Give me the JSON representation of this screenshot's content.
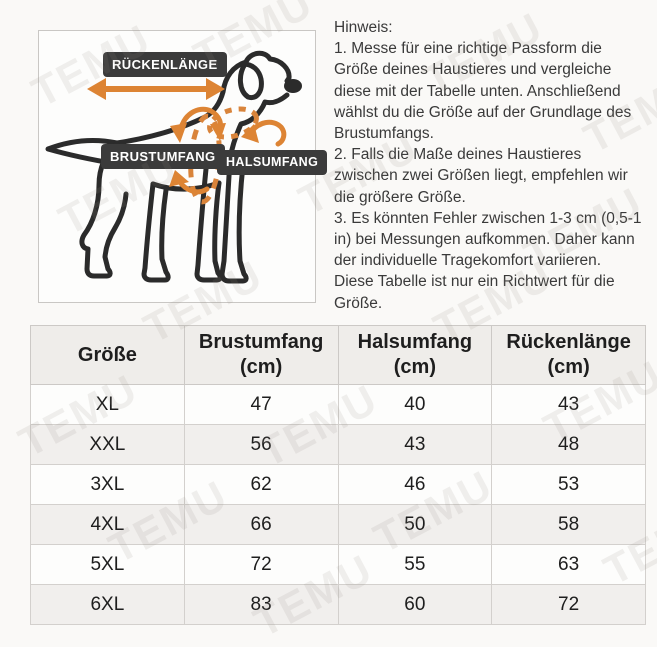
{
  "watermark": {
    "text": "TEMU"
  },
  "diagram": {
    "labels": {
      "back_length": "RÜCKENLÄNGE",
      "chest_girth": "BRUSTUMFANG",
      "neck_girth": "HALSUMFANG"
    },
    "colors": {
      "arrow_orange": "#dd8434",
      "label_background": "#3b3b3b",
      "label_text": "#ffffff",
      "dog_outline": "#2b2b2b"
    }
  },
  "note": {
    "title": "Hinweis:",
    "body": "1. Messe für eine richtige Passform die\nGröße deines Haustieres und vergleiche\ndiese mit der Tabelle unten. Anschließend\nwählst du die Größe auf der Grundlage des\nBrustumfangs.\n2. Falls die Maße deines Haustieres\nzwischen zwei Größen liegt, empfehlen wir\ndie größere Größe.\n3. Es könnten Fehler zwischen 1-3 cm (0,5-1\nin) bei Messungen aufkommen. Daher kann\nder individuelle Tragekomfort variieren.\nDiese Tabelle ist nur ein Richtwert für die\nGröße."
  },
  "table": {
    "columns": [
      "Größe",
      "Brustumfang\n(cm)",
      "Halsumfang\n(cm)",
      "Rückenlänge\n(cm)"
    ],
    "rows": [
      [
        "XL",
        "47",
        "40",
        "43"
      ],
      [
        "XXL",
        "56",
        "43",
        "48"
      ],
      [
        "3XL",
        "62",
        "46",
        "53"
      ],
      [
        "4XL",
        "66",
        "50",
        "58"
      ],
      [
        "5XL",
        "72",
        "55",
        "63"
      ],
      [
        "6XL",
        "83",
        "60",
        "72"
      ]
    ]
  }
}
